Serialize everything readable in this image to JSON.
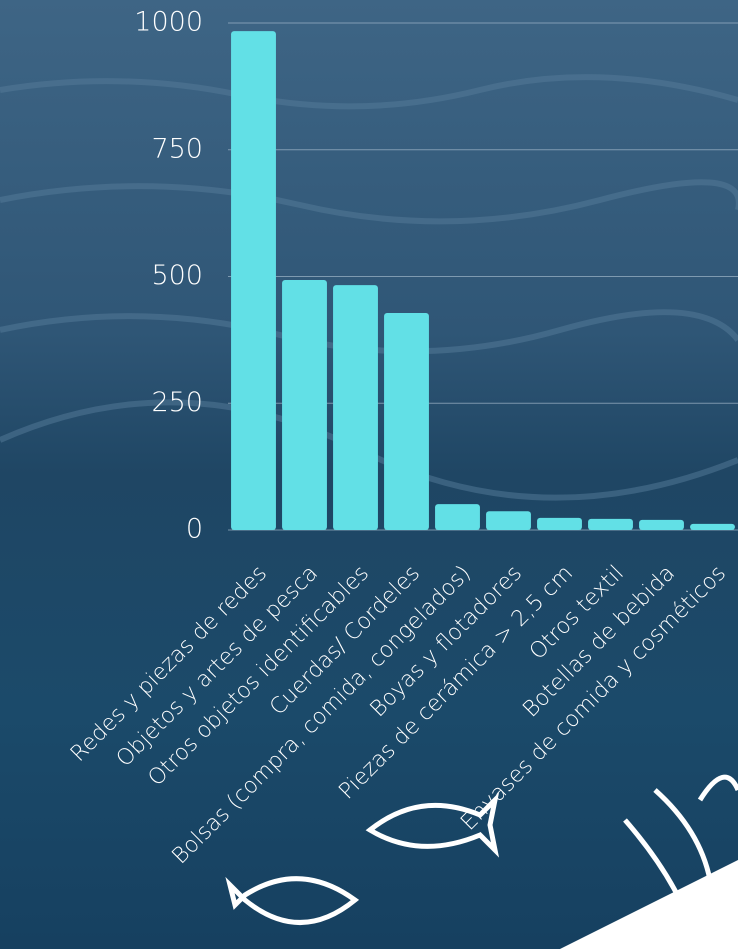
{
  "chart_data": {
    "type": "bar",
    "categories": [
      "Redes y piezas de redes",
      "Objetos y artes de pesca",
      "Otros objetos identificables",
      "Cuerdas/ Cordeles",
      "Bolsas (compra, comida, congelados)",
      "Boyas y flotadores",
      "Piezas de cerámica > 2,5 cm",
      "Otros textil",
      "Botellas de bebida",
      "Envases de comida y cosméticos"
    ],
    "values": [
      984,
      493,
      483,
      428,
      51,
      37,
      24,
      22,
      20,
      12
    ],
    "color": "#62e0e6",
    "ylim": [
      0,
      1000
    ],
    "yticks": [
      0,
      250,
      500,
      750,
      1000
    ],
    "grid": true
  }
}
